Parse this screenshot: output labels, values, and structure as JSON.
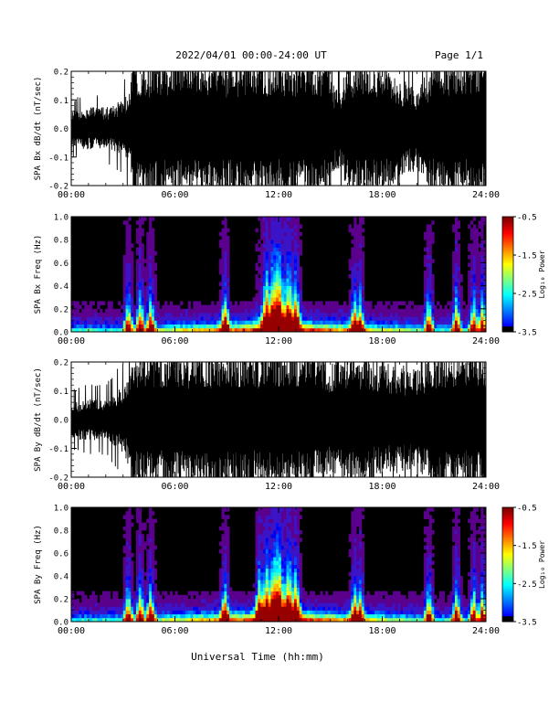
{
  "header": {
    "title": "2022/04/01  00:00-24:00 UT",
    "page": "Page 1/1"
  },
  "footer": {
    "xlabel": "Universal Time (hh:mm)"
  },
  "chart_data": [
    {
      "type": "line",
      "panel": "SPA Bx dB/dt",
      "ylabel": "SPA Bx dB/dt (nT/sec)",
      "xlabel": "Universal Time (hh:mm)",
      "x_ticks": [
        "00:00",
        "06:00",
        "12:00",
        "18:00",
        "24:00"
      ],
      "xlim": [
        0,
        24
      ],
      "ylim": [
        -0.2,
        0.2
      ],
      "y_ticks": [
        "-0.2",
        "-0.1",
        "0.0",
        "0.1",
        "0.2"
      ],
      "series": [
        {
          "envelope_hours": [
            0,
            1,
            2,
            3,
            3.4,
            3.6,
            4,
            6,
            8,
            10,
            12,
            13,
            14,
            14.8,
            15.2,
            15.6,
            16,
            16.5,
            17,
            18,
            19,
            20,
            21,
            22,
            23,
            24
          ],
          "amplitude": [
            0.05,
            0.06,
            0.06,
            0.08,
            0.12,
            0.2,
            0.2,
            0.2,
            0.2,
            0.2,
            0.2,
            0.2,
            0.2,
            0.2,
            0.13,
            0.12,
            0.2,
            0.2,
            0.2,
            0.2,
            0.14,
            0.12,
            0.2,
            0.2,
            0.2,
            0.2
          ]
        }
      ]
    },
    {
      "type": "heatmap",
      "panel": "SPA Bx Freq",
      "ylabel": "SPA Bx Freq (Hz)",
      "xlabel": "Universal Time (hh:mm)",
      "x_ticks": [
        "00:00",
        "06:00",
        "12:00",
        "18:00",
        "24:00"
      ],
      "xlim": [
        0,
        24
      ],
      "ylim": [
        0,
        1.0
      ],
      "y_ticks": [
        "0.0",
        "0.2",
        "0.4",
        "0.6",
        "0.8",
        "1.0"
      ],
      "colorbar": {
        "label": "Log₁₀ Power",
        "ticks": [
          "-0.5",
          "-1.5",
          "-2.5",
          "-3.5"
        ],
        "range": [
          -3.5,
          -0.5
        ]
      },
      "bursts_hours": [
        3.3,
        4.0,
        4.6,
        8.9,
        11.3,
        11.7,
        12.0,
        12.6,
        13.0,
        16.4,
        16.7,
        20.7,
        22.3,
        23.3,
        23.8
      ]
    },
    {
      "type": "line",
      "panel": "SPA By dB/dt",
      "ylabel": "SPA By dB/dt (nT/sec)",
      "xlabel": "Universal Time (hh:mm)",
      "x_ticks": [
        "00:00",
        "06:00",
        "12:00",
        "18:00",
        "24:00"
      ],
      "xlim": [
        0,
        24
      ],
      "ylim": [
        -0.2,
        0.2
      ],
      "y_ticks": [
        "-0.2",
        "-0.1",
        "0.0",
        "0.1",
        "0.2"
      ],
      "series": [
        {
          "envelope_hours": [
            0,
            1,
            2,
            3,
            3.4,
            3.6,
            4,
            6,
            8,
            10,
            12,
            13,
            14,
            14.5,
            15,
            16,
            16.5,
            17,
            18,
            19,
            20,
            21,
            22,
            23,
            24
          ],
          "amplitude": [
            0.05,
            0.06,
            0.06,
            0.1,
            0.14,
            0.2,
            0.2,
            0.2,
            0.2,
            0.2,
            0.2,
            0.2,
            0.2,
            0.17,
            0.16,
            0.2,
            0.2,
            0.18,
            0.16,
            0.16,
            0.14,
            0.2,
            0.2,
            0.2,
            0.2
          ]
        }
      ]
    },
    {
      "type": "heatmap",
      "panel": "SPA By Freq",
      "ylabel": "SPA By Freq (Hz)",
      "xlabel": "Universal Time (hh:mm)",
      "x_ticks": [
        "00:00",
        "06:00",
        "12:00",
        "18:00",
        "24:00"
      ],
      "xlim": [
        0,
        24
      ],
      "ylim": [
        0,
        1.0
      ],
      "y_ticks": [
        "0.0",
        "0.2",
        "0.4",
        "0.6",
        "0.8",
        "1.0"
      ],
      "colorbar": {
        "label": "Log₁₀ Power",
        "ticks": [
          "-0.5",
          "-1.5",
          "-2.5",
          "-3.5"
        ],
        "range": [
          -3.5,
          -0.5
        ]
      },
      "bursts_hours": [
        3.3,
        4.0,
        4.6,
        8.9,
        10.9,
        11.3,
        11.7,
        12.0,
        12.6,
        13.0,
        16.4,
        16.7,
        20.7,
        22.3,
        23.3,
        23.8
      ]
    }
  ]
}
